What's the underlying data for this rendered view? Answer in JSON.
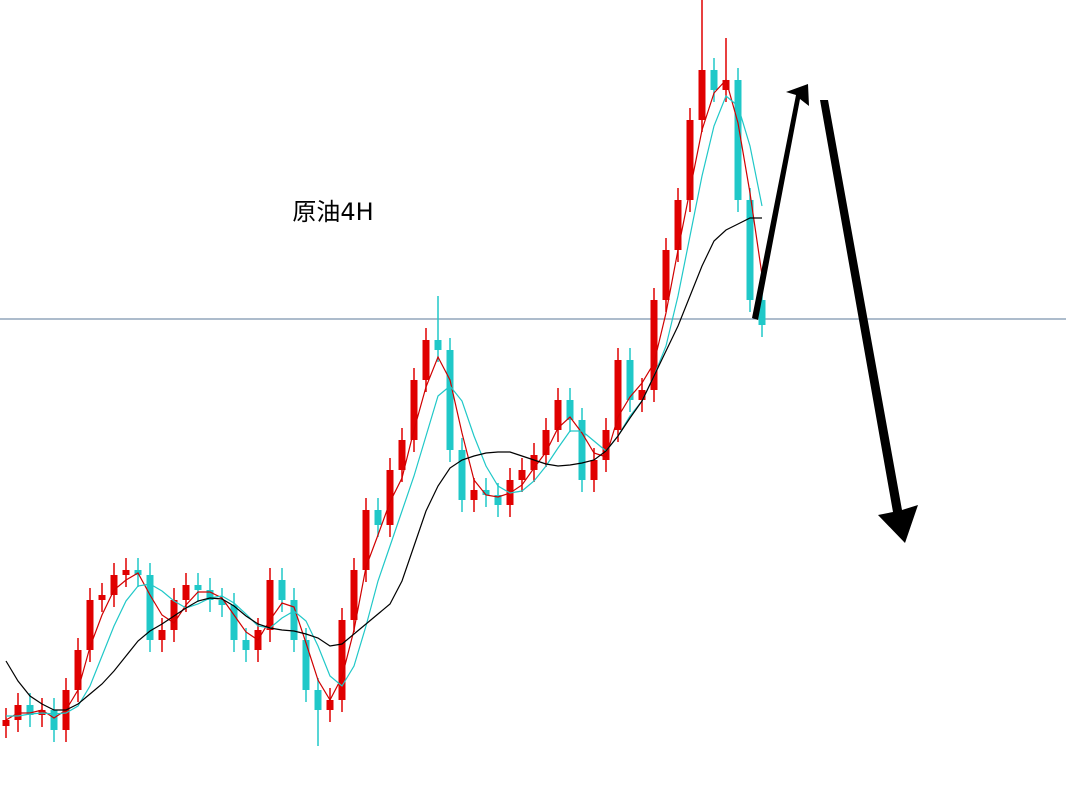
{
  "chart_data": {
    "type": "candlestick",
    "annotation": "原油4H",
    "ylim": [
      0,
      796
    ],
    "reference_line": 477,
    "reference_color": "#5b7a99",
    "up_color": "#e00000",
    "down_color": "#20c8c8",
    "open": [
      70,
      76,
      91,
      81,
      86,
      66,
      106,
      146,
      196,
      201,
      221,
      226,
      221,
      156,
      166,
      196,
      211,
      206,
      196,
      191,
      156,
      146,
      166,
      216,
      196,
      156,
      106,
      86,
      96,
      176,
      226,
      286,
      271,
      326,
      356,
      416,
      456,
      446,
      346,
      296,
      306,
      301,
      291,
      316,
      326,
      341,
      366,
      396,
      376,
      316,
      336,
      366,
      436,
      396,
      406,
      496,
      546,
      596,
      676,
      726,
      706,
      716,
      596,
      496
    ],
    "high": [
      88,
      103,
      103,
      98,
      98,
      118,
      158,
      208,
      213,
      233,
      238,
      238,
      233,
      178,
      208,
      223,
      223,
      218,
      208,
      203,
      168,
      178,
      228,
      228,
      208,
      168,
      118,
      108,
      188,
      238,
      298,
      298,
      338,
      368,
      428,
      468,
      500,
      458,
      358,
      318,
      318,
      313,
      328,
      338,
      353,
      378,
      408,
      408,
      388,
      348,
      378,
      448,
      448,
      418,
      508,
      558,
      608,
      688,
      796,
      738,
      758,
      728,
      608,
      508
    ],
    "low": [
      58,
      64,
      69,
      69,
      54,
      54,
      94,
      134,
      184,
      189,
      209,
      209,
      144,
      144,
      154,
      184,
      194,
      184,
      179,
      144,
      134,
      134,
      154,
      184,
      144,
      94,
      50,
      74,
      84,
      164,
      214,
      259,
      259,
      314,
      344,
      404,
      434,
      334,
      284,
      284,
      289,
      279,
      279,
      304,
      314,
      329,
      354,
      364,
      304,
      304,
      324,
      354,
      384,
      384,
      394,
      484,
      534,
      584,
      664,
      694,
      694,
      584,
      484,
      459
    ],
    "close": [
      76,
      91,
      81,
      86,
      66,
      106,
      146,
      196,
      201,
      221,
      226,
      221,
      156,
      166,
      196,
      211,
      206,
      196,
      191,
      156,
      146,
      166,
      216,
      196,
      156,
      106,
      86,
      96,
      176,
      226,
      286,
      271,
      326,
      356,
      416,
      456,
      446,
      346,
      296,
      306,
      301,
      291,
      316,
      326,
      341,
      366,
      396,
      376,
      316,
      336,
      366,
      436,
      396,
      406,
      496,
      546,
      596,
      676,
      726,
      706,
      716,
      596,
      496,
      471
    ],
    "lines": [
      {
        "color": "#d00000",
        "values": [
          76,
          83,
          83,
          86,
          78,
          86,
          106,
          149,
          181,
          206,
          216,
          223,
          201,
          181,
          173,
          191,
          204,
          204,
          198,
          181,
          164,
          156,
          176,
          193,
          189,
          153,
          116,
          96,
          119,
          166,
          229,
          261,
          294,
          318,
          366,
          409,
          439,
          416,
          363,
          316,
          301,
          299,
          303,
          311,
          328,
          344,
          368,
          379,
          363,
          343,
          339,
          379,
          399,
          413,
          433,
          483,
          546,
          606,
          666,
          703,
          716,
          673,
          603,
          521
        ]
      },
      {
        "color": "#20c8c8",
        "values": [
          80,
          80,
          82,
          83,
          82,
          83,
          90,
          110,
          140,
          170,
          195,
          210,
          212,
          205,
          195,
          188,
          192,
          198,
          200,
          193,
          182,
          170,
          168,
          178,
          185,
          175,
          150,
          120,
          110,
          130,
          170,
          215,
          250,
          285,
          320,
          360,
          400,
          410,
          395,
          360,
          330,
          310,
          303,
          305,
          315,
          330,
          348,
          365,
          365,
          355,
          345,
          360,
          380,
          395,
          420,
          450,
          500,
          560,
          620,
          670,
          700,
          690,
          650,
          590
        ]
      },
      {
        "color": "#000000",
        "values": [
          135,
          115,
          100,
          92,
          86,
          86,
          92,
          102,
          112,
          125,
          140,
          155,
          165,
          172,
          180,
          188,
          195,
          198,
          197,
          190,
          180,
          172,
          168,
          166,
          165,
          162,
          158,
          150,
          152,
          162,
          172,
          182,
          192,
          215,
          250,
          285,
          310,
          328,
          336,
          340,
          343,
          344,
          344,
          340,
          336,
          332,
          330,
          331,
          333,
          336,
          345,
          360,
          378,
          395,
          420,
          445,
          470,
          500,
          530,
          555,
          566,
          572,
          578,
          578
        ]
      }
    ]
  }
}
